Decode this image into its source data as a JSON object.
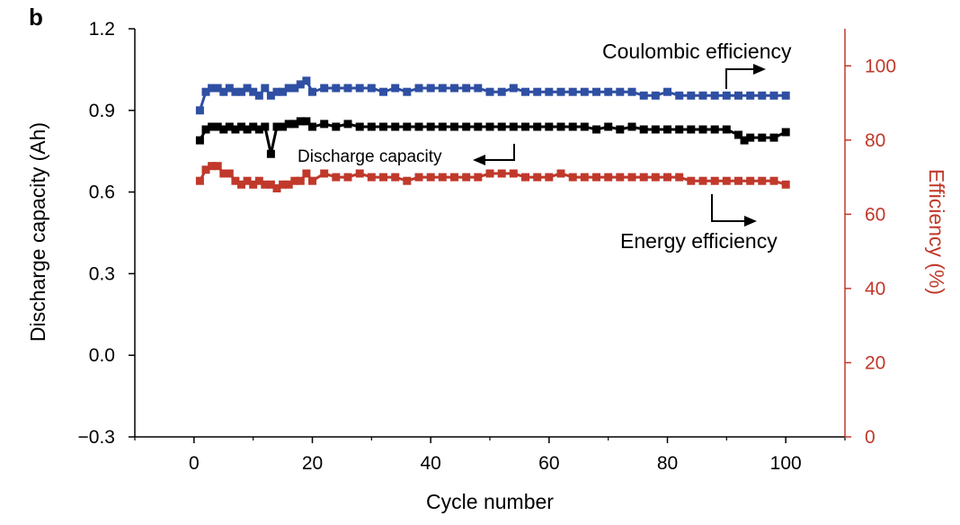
{
  "panel_label": "b",
  "chart_data": {
    "type": "scatter",
    "xlabel": "Cycle number",
    "ylabel_left": "Discharge capacity (Ah)",
    "ylabel_right": "Efficiency (%)",
    "xlim": [
      -10,
      110
    ],
    "ylim_left": [
      -0.3,
      1.2
    ],
    "ylim_right": [
      0,
      110
    ],
    "x_ticks": [
      0,
      20,
      40,
      60,
      80,
      100
    ],
    "x_tick_labels": [
      "0",
      "20",
      "40",
      "60",
      "80",
      "100"
    ],
    "y_left_ticks": [
      -0.3,
      0.0,
      0.3,
      0.6,
      0.9,
      1.2
    ],
    "y_left_tick_labels": [
      "−0.3",
      "0.0",
      "0.3",
      "0.6",
      "0.9",
      "1.2"
    ],
    "y_right_ticks": [
      0,
      20,
      40,
      60,
      80,
      100
    ],
    "y_right_tick_labels": [
      "0",
      "20",
      "40",
      "60",
      "80",
      "100"
    ],
    "colors": {
      "left_axis": "#000000",
      "right_axis": "#c0392b"
    },
    "series": [
      {
        "name": "Coulombic efficiency",
        "axis": "right",
        "color": "#2f4fa3",
        "x": [
          1,
          2,
          3,
          4,
          5,
          6,
          7,
          8,
          9,
          10,
          11,
          12,
          13,
          14,
          15,
          16,
          17,
          18,
          19,
          20,
          22,
          24,
          26,
          28,
          30,
          32,
          34,
          36,
          38,
          40,
          42,
          44,
          46,
          48,
          50,
          52,
          54,
          56,
          58,
          60,
          62,
          64,
          66,
          68,
          70,
          72,
          74,
          76,
          78,
          80,
          82,
          84,
          86,
          88,
          90,
          92,
          94,
          96,
          98,
          100
        ],
        "y": [
          88,
          93,
          94,
          94,
          93,
          94,
          93,
          93,
          94,
          93,
          92,
          94,
          92,
          93,
          93,
          94,
          94,
          95,
          96,
          93,
          94,
          94,
          94,
          94,
          94,
          93,
          94,
          93,
          94,
          94,
          94,
          94,
          94,
          94,
          93,
          93,
          94,
          93,
          93,
          93,
          93,
          93,
          93,
          93,
          93,
          93,
          93,
          92,
          92,
          93,
          92,
          92,
          92,
          92,
          92,
          92,
          92,
          92,
          92,
          92
        ]
      },
      {
        "name": "Discharge capacity",
        "axis": "left",
        "color": "#000000",
        "x": [
          1,
          2,
          3,
          4,
          5,
          6,
          7,
          8,
          9,
          10,
          11,
          12,
          13,
          14,
          15,
          16,
          17,
          18,
          19,
          20,
          22,
          24,
          26,
          28,
          30,
          32,
          34,
          36,
          38,
          40,
          42,
          44,
          46,
          48,
          50,
          52,
          54,
          56,
          58,
          60,
          62,
          64,
          66,
          68,
          70,
          72,
          74,
          76,
          78,
          80,
          82,
          84,
          86,
          88,
          90,
          92,
          93,
          94,
          96,
          98,
          100
        ],
        "y": [
          0.79,
          0.83,
          0.84,
          0.84,
          0.83,
          0.84,
          0.83,
          0.84,
          0.83,
          0.84,
          0.83,
          0.84,
          0.74,
          0.84,
          0.84,
          0.85,
          0.85,
          0.86,
          0.86,
          0.84,
          0.85,
          0.84,
          0.85,
          0.84,
          0.84,
          0.84,
          0.84,
          0.84,
          0.84,
          0.84,
          0.84,
          0.84,
          0.84,
          0.84,
          0.84,
          0.84,
          0.84,
          0.84,
          0.84,
          0.84,
          0.84,
          0.84,
          0.84,
          0.83,
          0.84,
          0.83,
          0.84,
          0.83,
          0.83,
          0.83,
          0.83,
          0.83,
          0.83,
          0.83,
          0.83,
          0.81,
          0.79,
          0.8,
          0.8,
          0.8,
          0.82
        ]
      },
      {
        "name": "Energy efficiency",
        "axis": "right",
        "color": "#c0392b",
        "x": [
          1,
          2,
          3,
          4,
          5,
          6,
          7,
          8,
          9,
          10,
          11,
          12,
          13,
          14,
          15,
          16,
          17,
          18,
          19,
          20,
          22,
          24,
          26,
          28,
          30,
          32,
          34,
          36,
          38,
          40,
          42,
          44,
          46,
          48,
          50,
          52,
          54,
          56,
          58,
          60,
          62,
          64,
          66,
          68,
          70,
          72,
          74,
          76,
          78,
          80,
          82,
          84,
          86,
          88,
          90,
          92,
          94,
          96,
          98,
          100
        ],
        "y": [
          69,
          72,
          73,
          73,
          71,
          71,
          69,
          68,
          69,
          68,
          69,
          68,
          68,
          67,
          68,
          68,
          69,
          69,
          71,
          69,
          71,
          70,
          70,
          71,
          70,
          70,
          70,
          69,
          70,
          70,
          70,
          70,
          70,
          70,
          71,
          71,
          71,
          70,
          70,
          70,
          71,
          70,
          70,
          70,
          70,
          70,
          70,
          70,
          70,
          70,
          70,
          69,
          69,
          69,
          69,
          69,
          69,
          69,
          69,
          68
        ]
      }
    ],
    "annotations": {
      "coulombic": "Coulombic efficiency",
      "discharge": "Discharge capacity",
      "energy": "Energy efficiency"
    }
  }
}
